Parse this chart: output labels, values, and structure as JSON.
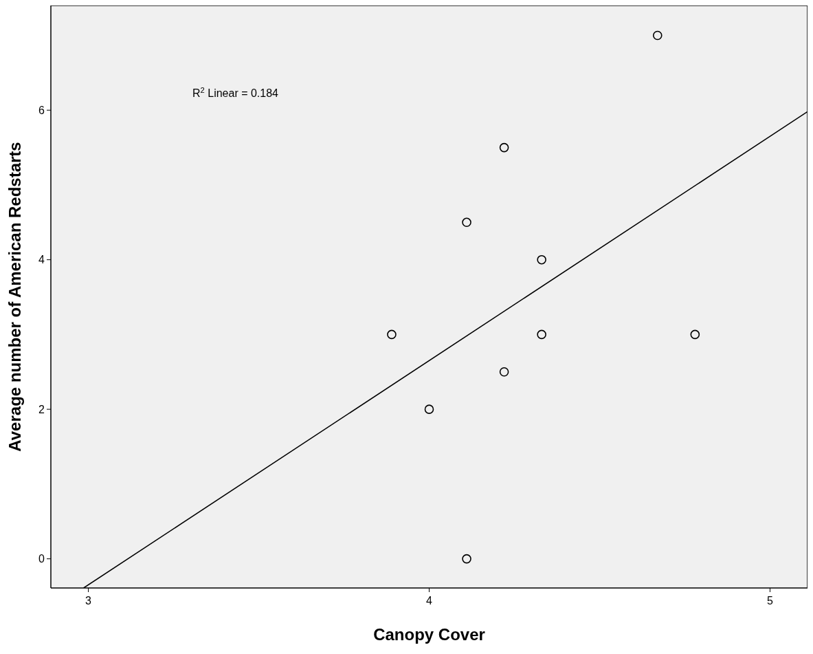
{
  "chart_data": {
    "type": "scatter",
    "xlabel": "Canopy Cover",
    "ylabel": "Average number of American Redstarts",
    "xlim": [
      2.89,
      5.11
    ],
    "ylim": [
      -0.39,
      7.4
    ],
    "xticks": [
      3,
      4,
      5
    ],
    "yticks": [
      0,
      2,
      4,
      6
    ],
    "grid": false,
    "marker": "circle",
    "series": [
      {
        "color": "#000000",
        "x": [
          3.89,
          4,
          4.11,
          4.11,
          4.22,
          4.22,
          4.33,
          4.33,
          4.67,
          4.78
        ],
        "values": [
          3,
          2,
          4.5,
          0,
          5.5,
          2.5,
          4,
          3,
          7,
          3
        ]
      },
      {
        "type": "line",
        "marker": "none",
        "color": "#000000",
        "x": [
          2.986,
          5.11
        ],
        "values": [
          -0.39,
          5.98
        ]
      }
    ],
    "annotations": [
      "R$^{2}$ Linear = 0.184"
    ]
  }
}
